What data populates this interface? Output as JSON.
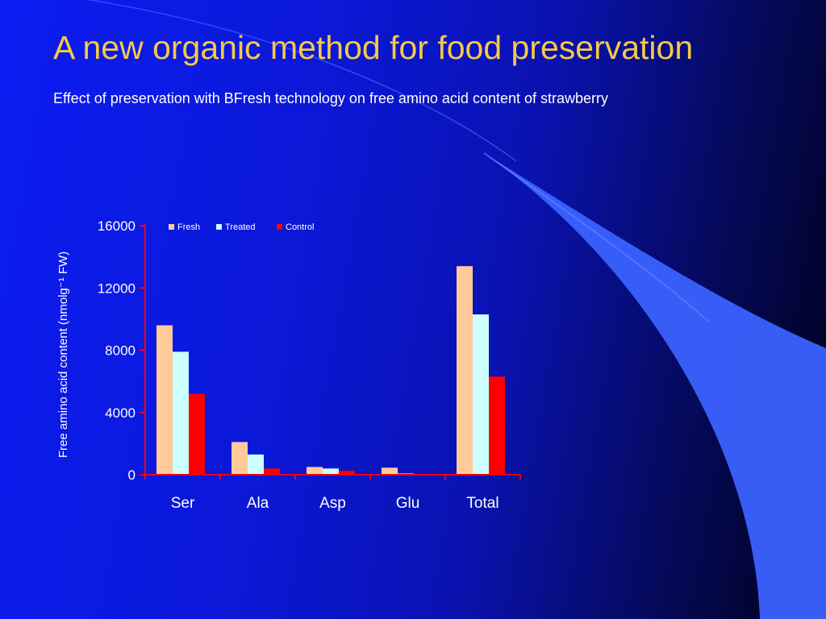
{
  "slide": {
    "title": "A new organic method for food preservation",
    "subtitle": "Effect of preservation with BFresh technology on free amino acid content of strawberry"
  },
  "chart_data": {
    "type": "bar",
    "title": "",
    "xlabel": "",
    "ylabel": "Free amino acid content (nmolg⁻¹ FW)",
    "categories": [
      "Ser",
      "Ala",
      "Asp",
      "Glu",
      "Total"
    ],
    "series": [
      {
        "name": "Fresh",
        "color": "#ffcc99",
        "values": [
          9600,
          2100,
          500,
          450,
          13400
        ]
      },
      {
        "name": "Treated",
        "color": "#ccffff",
        "values": [
          7900,
          1300,
          400,
          80,
          10300
        ]
      },
      {
        "name": "Control",
        "color": "#ff0000",
        "values": [
          5200,
          400,
          250,
          50,
          6300
        ]
      }
    ],
    "ylim": [
      0,
      16000
    ],
    "yticks": [
      0,
      4000,
      8000,
      12000,
      16000
    ],
    "yticks_labels": [
      "0",
      "4000",
      "8000",
      "12000",
      "16000"
    ],
    "grid": false,
    "legend_position": "top-left",
    "axis_color": "#ff0000"
  }
}
